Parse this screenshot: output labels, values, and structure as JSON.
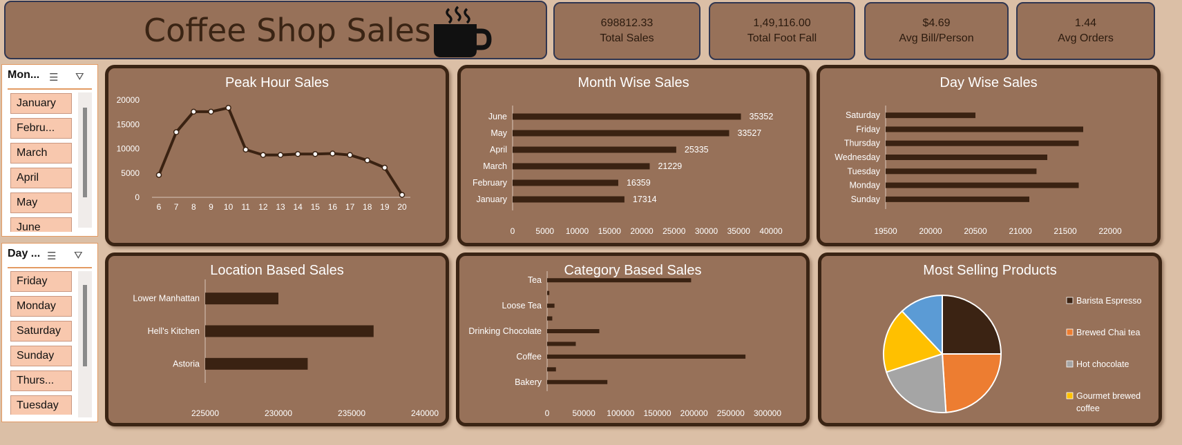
{
  "header": {
    "title": "Coffee Shop Sales"
  },
  "kpis": [
    {
      "value": "698812.33",
      "label": "Total Sales"
    },
    {
      "value": "1,49,116.00",
      "label": "Total Foot Fall"
    },
    {
      "value": "$4.69",
      "label": "Avg Bill/Person"
    },
    {
      "value": "1.44",
      "label": "Avg Orders"
    }
  ],
  "month_slicer": {
    "header": "Mon...",
    "items": [
      "January",
      "Febru...",
      "March",
      "April",
      "May",
      "June"
    ]
  },
  "day_slicer": {
    "header": "Day ...",
    "items": [
      "Friday",
      "Monday",
      "Saturday",
      "Sunday",
      "Thurs...",
      "Tuesday"
    ]
  },
  "panels": {
    "peak_hour": "Peak Hour Sales",
    "month_wise": "Month Wise Sales",
    "day_wise": "Day Wise Sales",
    "location": "Location Based Sales",
    "category": "Category Based Sales",
    "products": "Most Selling Products"
  },
  "colors": {
    "bar": "#3a2212",
    "panel": "#977159",
    "border": "#3a2414",
    "slicer_button": "#f8c8ae"
  },
  "chart_data": [
    {
      "type": "line",
      "title": "Peak Hour Sales",
      "x": [
        6,
        7,
        8,
        9,
        10,
        11,
        12,
        13,
        14,
        15,
        16,
        17,
        18,
        19,
        20
      ],
      "values": [
        4600,
        13400,
        17600,
        17600,
        18400,
        9800,
        8700,
        8700,
        8900,
        8900,
        9000,
        8700,
        7600,
        6100,
        500
      ],
      "ylim": [
        0,
        20000
      ],
      "yticks": [
        0,
        5000,
        10000,
        15000,
        20000
      ]
    },
    {
      "type": "bar",
      "title": "Month Wise Sales",
      "categories": [
        "June",
        "May",
        "April",
        "March",
        "February",
        "January"
      ],
      "values": [
        35352,
        33527,
        25335,
        21229,
        16359,
        17314
      ],
      "xlim": [
        0,
        40000
      ],
      "xticks": [
        0,
        5000,
        10000,
        15000,
        20000,
        25000,
        30000,
        35000,
        40000
      ]
    },
    {
      "type": "bar",
      "title": "Day Wise Sales",
      "categories": [
        "Saturday",
        "Friday",
        "Thursday",
        "Wednesday",
        "Tuesday",
        "Monday",
        "Sunday"
      ],
      "values": [
        20500,
        21700,
        21650,
        21300,
        21180,
        21650,
        21100
      ],
      "xlim": [
        19500,
        22000
      ],
      "xticks": [
        19500,
        20000,
        20500,
        21000,
        21500,
        22000
      ]
    },
    {
      "type": "bar",
      "title": "Location Based Sales",
      "categories": [
        "Lower Manhattan",
        "Hell's Kitchen",
        "Astoria"
      ],
      "values": [
        230000,
        236500,
        232000
      ],
      "xlim": [
        225000,
        240000
      ],
      "xticks": [
        225000,
        230000,
        235000,
        240000
      ]
    },
    {
      "type": "bar",
      "title": "Category Based Sales",
      "categories": [
        "Tea",
        "",
        "Loose Tea",
        "",
        "Drinking Chocolate",
        "",
        "Coffee",
        "",
        "Bakery"
      ],
      "values": [
        196000,
        3000,
        10000,
        7000,
        71000,
        39000,
        270000,
        12000,
        82000
      ],
      "xlim": [
        0,
        300000
      ],
      "xticks": [
        0,
        50000,
        100000,
        150000,
        200000,
        250000,
        300000
      ]
    },
    {
      "type": "pie",
      "title": "Most Selling Products",
      "series": [
        {
          "name": "Barista Espresso",
          "value": 25,
          "color": "#3b2313"
        },
        {
          "name": "Brewed Chai tea",
          "value": 24,
          "color": "#ed7d31"
        },
        {
          "name": "Hot chocolate",
          "value": 21,
          "color": "#a5a5a5"
        },
        {
          "name": "Gourmet brewed coffee",
          "value": 18,
          "color": "#ffc000"
        },
        {
          "name": "",
          "value": 12,
          "color": "#5b9bd5"
        }
      ]
    }
  ]
}
